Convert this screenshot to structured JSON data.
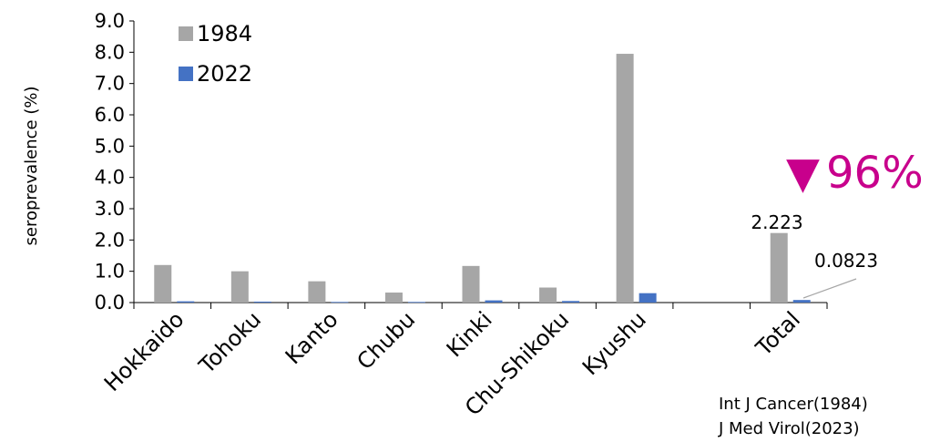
{
  "chart_data": {
    "type": "bar",
    "categories": [
      "Hokkaido",
      "Tohoku",
      "Kanto",
      "Chubu",
      "Kinki",
      "Chu-Shikoku",
      "Kyushu",
      "",
      "Total"
    ],
    "series": [
      {
        "name": "1984",
        "values": [
          1.2,
          1.0,
          0.68,
          0.32,
          1.17,
          0.48,
          7.95,
          null,
          2.223
        ],
        "color": "#a6a6a6"
      },
      {
        "name": "2022",
        "values": [
          0.04,
          0.03,
          0.02,
          0.02,
          0.07,
          0.05,
          0.3,
          null,
          0.0823
        ],
        "color": "#4472c4"
      }
    ],
    "ylabel": "seroprevalence (%)",
    "ylim": [
      0,
      9.0
    ],
    "yticks": [
      "0.0",
      "1.0",
      "2.0",
      "3.0",
      "4.0",
      "5.0",
      "6.0",
      "7.0",
      "8.0",
      "9.0"
    ],
    "grid": false,
    "legend_position": "top-left",
    "data_labels": {
      "total_1984": "2.223",
      "total_2022": "0.0823"
    },
    "annotation": {
      "marker": "▼",
      "text": "96%",
      "color": "#c8008c"
    }
  },
  "sources": [
    "Int J Cancer(1984)",
    "J Med Virol(2023)"
  ]
}
